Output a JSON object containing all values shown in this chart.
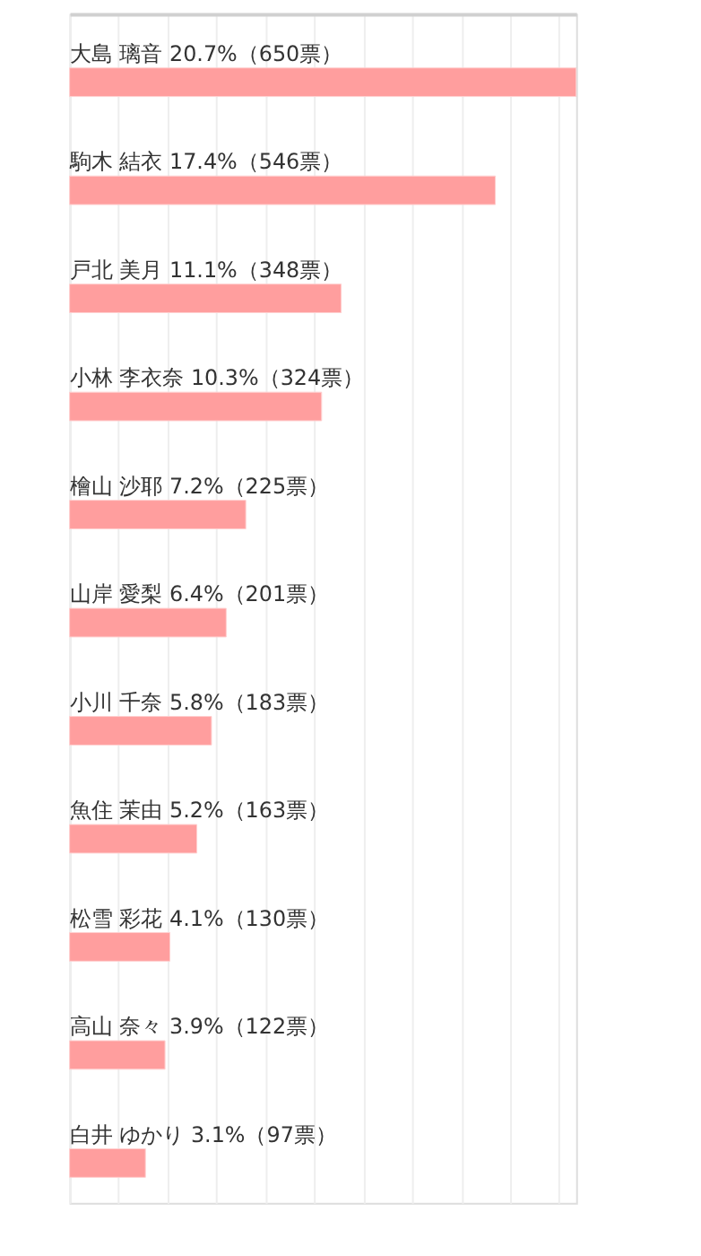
{
  "chart_data": {
    "type": "bar",
    "orientation": "horizontal",
    "categories": [
      "大島 璃音",
      "駒木 結衣",
      "戸北 美月",
      "小林 李衣奈",
      "檜山 沙耶",
      "山岸 愛梨",
      "小川 千奈",
      "魚住 茉由",
      "松雪 彩花",
      "高山 奈々",
      "白井 ゆかり"
    ],
    "values": [
      20.7,
      17.4,
      11.1,
      10.3,
      7.2,
      6.4,
      5.8,
      5.2,
      4.1,
      3.9,
      3.1
    ],
    "value_labels": [
      "20.7%（650票）",
      "17.4%（546票）",
      "11.1%（348票）",
      "10.3%（324票）",
      "7.2%（225票）",
      "6.4%（201票）",
      "5.8%（183票）",
      "5.2%（163票）",
      "4.1%（130票）",
      "3.9%（122票）",
      "3.1%（97票）"
    ],
    "color": "#ff9e9e",
    "grid": "x",
    "tick_labels": false
  }
}
